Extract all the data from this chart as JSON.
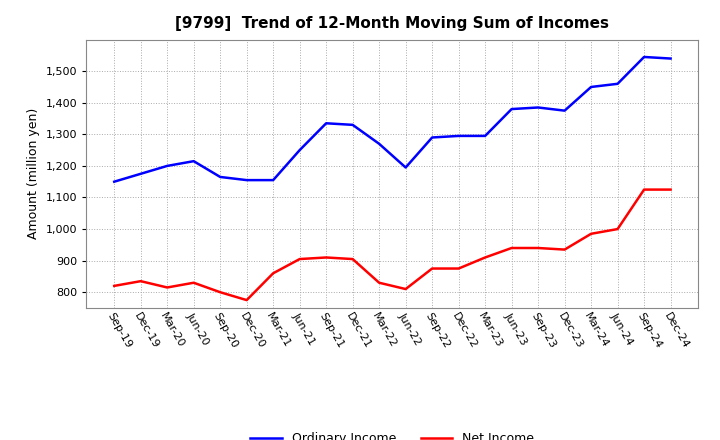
{
  "title": "[9799]  Trend of 12-Month Moving Sum of Incomes",
  "ylabel": "Amount (million yen)",
  "background_color": "#ffffff",
  "plot_bg_color": "#ffffff",
  "grid_color": "#aaaaaa",
  "labels": [
    "Sep-19",
    "Dec-19",
    "Mar-20",
    "Jun-20",
    "Sep-20",
    "Dec-20",
    "Mar-21",
    "Jun-21",
    "Sep-21",
    "Dec-21",
    "Mar-22",
    "Jun-22",
    "Sep-22",
    "Dec-22",
    "Mar-23",
    "Jun-23",
    "Sep-23",
    "Dec-23",
    "Mar-24",
    "Jun-24",
    "Sep-24",
    "Dec-24"
  ],
  "ordinary_income": [
    1150,
    1175,
    1200,
    1215,
    1165,
    1155,
    1155,
    1250,
    1335,
    1330,
    1270,
    1195,
    1290,
    1295,
    1295,
    1380,
    1385,
    1375,
    1450,
    1460,
    1545,
    1540
  ],
  "net_income": [
    820,
    835,
    815,
    830,
    800,
    775,
    860,
    905,
    910,
    905,
    830,
    810,
    875,
    875,
    910,
    940,
    940,
    935,
    985,
    1000,
    1125,
    1125
  ],
  "ordinary_color": "#0000ff",
  "net_color": "#ff0000",
  "ylim_min": 750,
  "ylim_max": 1600,
  "yticks": [
    800,
    900,
    1000,
    1100,
    1200,
    1300,
    1400,
    1500
  ],
  "line_width": 1.8,
  "title_fontsize": 11,
  "axis_fontsize": 9,
  "tick_fontsize": 8,
  "legend_fontsize": 9
}
